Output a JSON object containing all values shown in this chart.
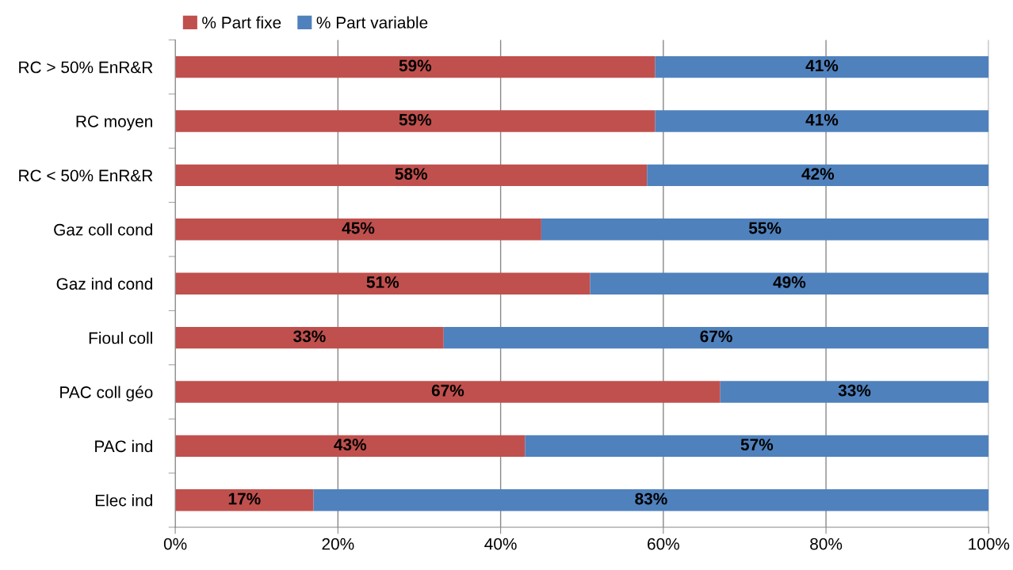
{
  "chart_data": {
    "type": "bar",
    "orientation": "horizontal",
    "stacked": true,
    "categories": [
      "RC > 50% EnR&R",
      "RC moyen",
      "RC < 50% EnR&R",
      "Gaz coll cond",
      "Gaz ind cond",
      "Fioul coll",
      "PAC coll géo",
      "PAC ind",
      "Elec ind"
    ],
    "series": [
      {
        "name": "% Part fixe",
        "color": "#c0504d",
        "values": [
          59,
          59,
          58,
          45,
          51,
          33,
          67,
          43,
          17
        ],
        "value_labels": [
          "59%",
          "59%",
          "58%",
          "45%",
          "51%",
          "33%",
          "67%",
          "43%",
          "17%"
        ]
      },
      {
        "name": "% Part variable",
        "color": "#4f81bd",
        "values": [
          41,
          41,
          42,
          55,
          49,
          67,
          33,
          57,
          83
        ],
        "value_labels": [
          "41%",
          "41%",
          "42%",
          "55%",
          "49%",
          "67%",
          "33%",
          "57%",
          "83%"
        ]
      }
    ],
    "xlim": [
      0,
      100
    ],
    "xticks": [
      {
        "value": 0,
        "label": "0%"
      },
      {
        "value": 20,
        "label": "20%"
      },
      {
        "value": 40,
        "label": "40%"
      },
      {
        "value": 60,
        "label": "60%"
      },
      {
        "value": 80,
        "label": "80%"
      },
      {
        "value": 100,
        "label": "100%"
      }
    ],
    "grid": "x",
    "legend": "top left"
  }
}
